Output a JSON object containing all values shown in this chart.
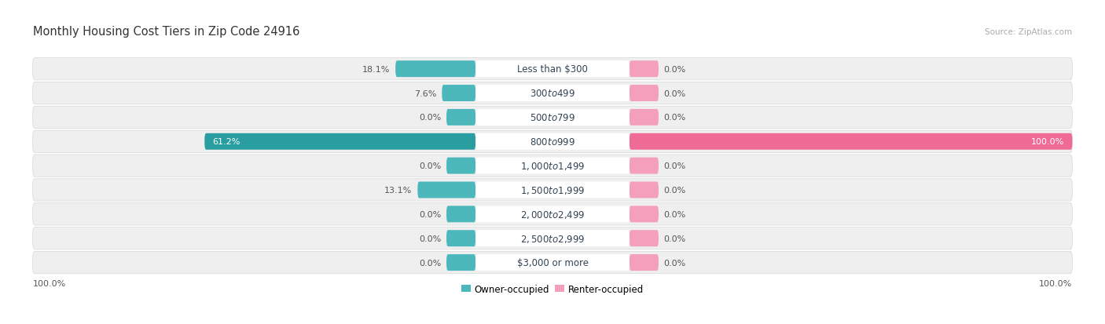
{
  "title": "Monthly Housing Cost Tiers in Zip Code 24916",
  "source": "Source: ZipAtlas.com",
  "categories": [
    "Less than $300",
    "$300 to $499",
    "$500 to $799",
    "$800 to $999",
    "$1,000 to $1,499",
    "$1,500 to $1,999",
    "$2,000 to $2,499",
    "$2,500 to $2,999",
    "$3,000 or more"
  ],
  "owner_values": [
    18.1,
    7.6,
    0.0,
    61.2,
    0.0,
    13.1,
    0.0,
    0.0,
    0.0
  ],
  "renter_values": [
    0.0,
    0.0,
    0.0,
    100.0,
    0.0,
    0.0,
    0.0,
    0.0,
    0.0
  ],
  "owner_color": "#4db8bb",
  "owner_color_dark": "#2a9da0",
  "renter_color": "#f4a0bc",
  "renter_color_dark": "#ef6b96",
  "row_bg_color": "#ebebeb",
  "row_bg_color_alt": "#f5f5f5",
  "legend_owner": "Owner-occupied",
  "legend_renter": "Renter-occupied",
  "bottom_left_label": "100.0%",
  "bottom_right_label": "100.0%",
  "title_fontsize": 10.5,
  "label_fontsize": 8.0,
  "category_fontsize": 8.5,
  "source_fontsize": 7.5
}
